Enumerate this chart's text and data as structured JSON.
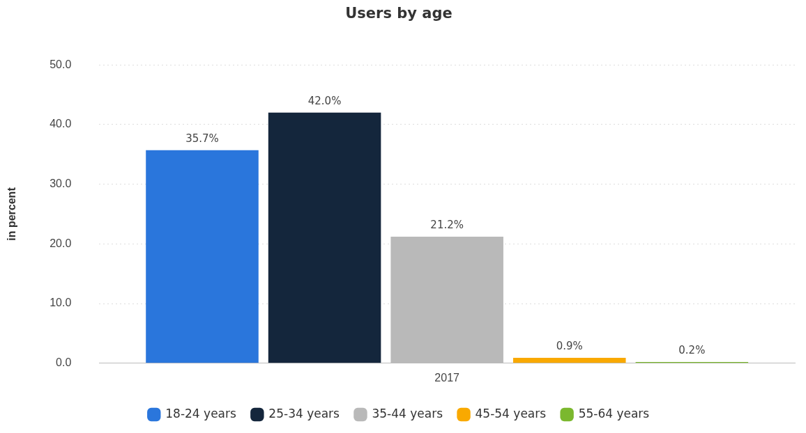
{
  "chart_data": {
    "type": "bar",
    "title": "Users by age",
    "ylabel": "in percent",
    "categories": [
      "2017"
    ],
    "series": [
      {
        "name": "18-24 years",
        "color": "#2a76dc",
        "values": [
          35.7
        ],
        "value_labels": [
          "35.7%"
        ]
      },
      {
        "name": "25-34 years",
        "color": "#14263c",
        "values": [
          42.0
        ],
        "value_labels": [
          "42.0%"
        ]
      },
      {
        "name": "35-44 years",
        "color": "#b9b9b9",
        "values": [
          21.2
        ],
        "value_labels": [
          "21.2%"
        ]
      },
      {
        "name": "45-54 years",
        "color": "#f9a900",
        "values": [
          0.9
        ],
        "value_labels": [
          "0.9%"
        ]
      },
      {
        "name": "55-64 years",
        "color": "#7bb82e",
        "values": [
          0.2
        ],
        "value_labels": [
          "0.2%"
        ]
      }
    ],
    "ylim": [
      0,
      50
    ],
    "yticks": [
      {
        "value": 0,
        "label": "0.0"
      },
      {
        "value": 10,
        "label": "10.0"
      },
      {
        "value": 20,
        "label": "20.0"
      },
      {
        "value": 30,
        "label": "30.0"
      },
      {
        "value": 40,
        "label": "40.0"
      },
      {
        "value": 50,
        "label": "50.0"
      }
    ],
    "grid": "y",
    "legend": "bottom"
  }
}
